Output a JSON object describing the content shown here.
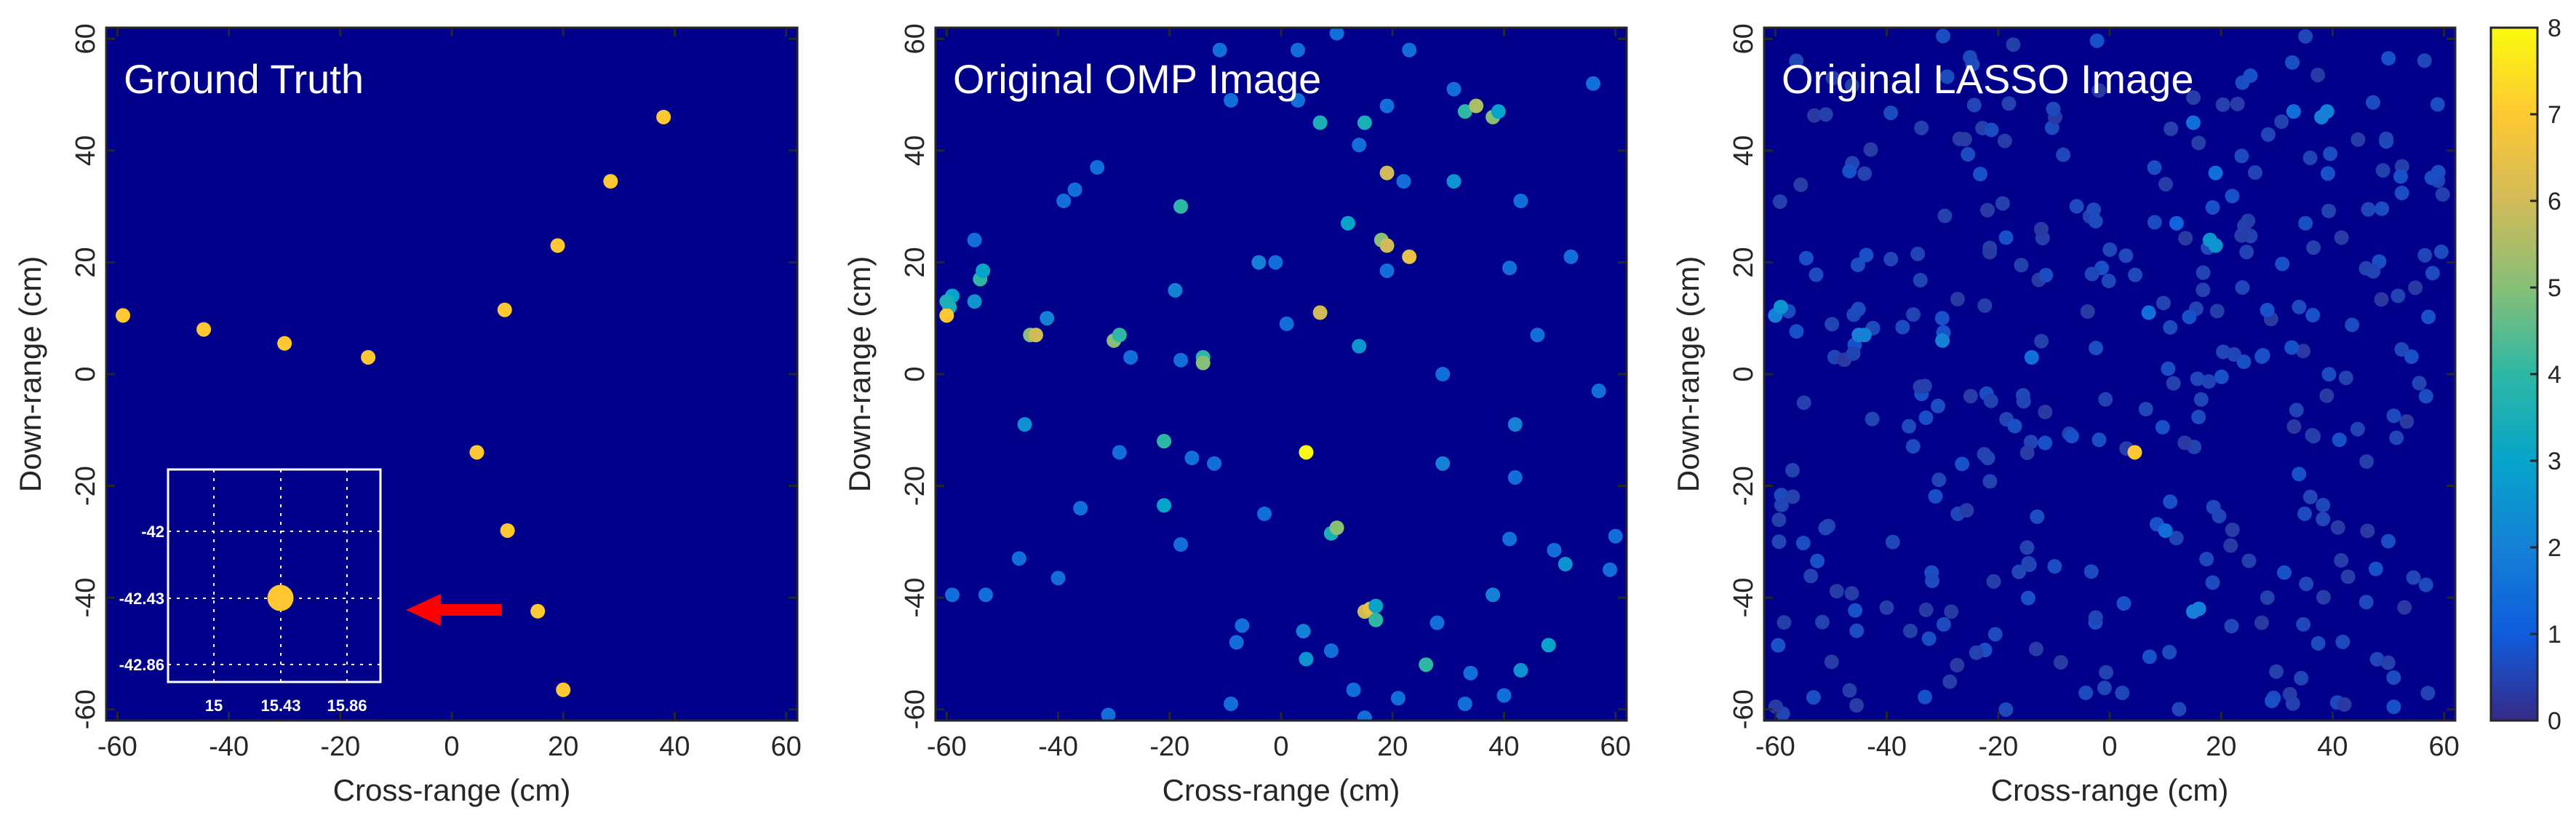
{
  "colors": {
    "background": "#00008B",
    "frame": "#262626",
    "arrow": "#FF0000",
    "inset_frame": "#FFFFFF"
  },
  "colorbar": {
    "min": 0,
    "max": 8,
    "ticks": [
      "0",
      "1",
      "2",
      "3",
      "4",
      "5",
      "6",
      "7",
      "8"
    ],
    "colormap": "parula"
  },
  "chart_data": [
    {
      "type": "scatter",
      "title": "Ground Truth",
      "xlabel": "Cross-range (cm)",
      "ylabel": "Down-range (cm)",
      "xlim": [
        -62,
        62
      ],
      "ylim": [
        -62,
        62
      ],
      "xticks": [
        "-60",
        "-40",
        "-20",
        "0",
        "20",
        "40",
        "60"
      ],
      "yticks": [
        "-60",
        "-40",
        "-20",
        "0",
        "20",
        "40",
        "60"
      ],
      "grid": false,
      "points": [
        {
          "x": -59,
          "y": 10.5,
          "v": 7
        },
        {
          "x": -44.5,
          "y": 8,
          "v": 7
        },
        {
          "x": -30,
          "y": 5.5,
          "v": 7
        },
        {
          "x": -15,
          "y": 3,
          "v": 7
        },
        {
          "x": 9.5,
          "y": 11.5,
          "v": 7
        },
        {
          "x": 19,
          "y": 23,
          "v": 7
        },
        {
          "x": 28.5,
          "y": 34.5,
          "v": 7
        },
        {
          "x": 38,
          "y": 46,
          "v": 7
        },
        {
          "x": 4.5,
          "y": -14,
          "v": 7
        },
        {
          "x": 10,
          "y": -28,
          "v": 7
        },
        {
          "x": 15.43,
          "y": -42.43,
          "v": 7
        },
        {
          "x": 20,
          "y": -56.5,
          "v": 7
        }
      ],
      "inset": {
        "xticks": [
          "15",
          "15.43",
          "15.86"
        ],
        "yticks": [
          "-42",
          "-42.43",
          "-42.86"
        ],
        "point": {
          "x": 15.43,
          "y": -42.43,
          "v": 7
        }
      }
    },
    {
      "type": "scatter",
      "title": "Original OMP Image",
      "xlabel": "Cross-range (cm)",
      "ylabel": "Down-range (cm)",
      "xlim": [
        -62,
        62
      ],
      "ylim": [
        -62,
        62
      ],
      "xticks": [
        "-60",
        "-40",
        "-20",
        "0",
        "20",
        "40",
        "60"
      ],
      "yticks": [
        "-60",
        "-40",
        "-20",
        "0",
        "20",
        "40",
        "60"
      ],
      "grid": false,
      "points": [
        {
          "x": -59.5,
          "y": 12,
          "v": 3.5
        },
        {
          "x": -60,
          "y": 10.5,
          "v": 7
        },
        {
          "x": -59,
          "y": 14,
          "v": 3
        },
        {
          "x": -55,
          "y": 24,
          "v": 1.5
        },
        {
          "x": -54,
          "y": 17,
          "v": 4
        },
        {
          "x": -53.5,
          "y": 18.5,
          "v": 3
        },
        {
          "x": -55,
          "y": 13,
          "v": 2.5
        },
        {
          "x": -59,
          "y": -39.5,
          "v": 1.5
        },
        {
          "x": -53,
          "y": -39.5,
          "v": 1.5
        },
        {
          "x": -47,
          "y": -33,
          "v": 1.5
        },
        {
          "x": -40,
          "y": -36.5,
          "v": 1.5
        },
        {
          "x": -46,
          "y": -9,
          "v": 2.5
        },
        {
          "x": -45,
          "y": 7,
          "v": 5
        },
        {
          "x": -44,
          "y": 7,
          "v": 6
        },
        {
          "x": -42,
          "y": 10,
          "v": 2
        },
        {
          "x": -39,
          "y": 31,
          "v": 1.5
        },
        {
          "x": -37,
          "y": 33,
          "v": 1.5
        },
        {
          "x": -33,
          "y": 37,
          "v": 1.5
        },
        {
          "x": -36,
          "y": -24,
          "v": 1.5
        },
        {
          "x": -30,
          "y": 6,
          "v": 5
        },
        {
          "x": -29,
          "y": 7,
          "v": 4
        },
        {
          "x": -27,
          "y": 3,
          "v": 1.5
        },
        {
          "x": -29,
          "y": -14,
          "v": 1.5
        },
        {
          "x": -21,
          "y": -12,
          "v": 4
        },
        {
          "x": -21,
          "y": -23.5,
          "v": 3
        },
        {
          "x": -19,
          "y": 15,
          "v": 2
        },
        {
          "x": -18,
          "y": 30,
          "v": 4
        },
        {
          "x": -18,
          "y": 2.5,
          "v": 1.5
        },
        {
          "x": -14,
          "y": 3,
          "v": 4
        },
        {
          "x": -14,
          "y": 2,
          "v": 5
        },
        {
          "x": -16,
          "y": -15,
          "v": 1.5
        },
        {
          "x": -18,
          "y": -30.5,
          "v": 1.5
        },
        {
          "x": -12,
          "y": -16,
          "v": 1.5
        },
        {
          "x": -11,
          "y": 58,
          "v": 1.5
        },
        {
          "x": -9,
          "y": 49,
          "v": 1.5
        },
        {
          "x": -7,
          "y": -45,
          "v": 1.5
        },
        {
          "x": -8,
          "y": -48,
          "v": 1.5
        },
        {
          "x": -9,
          "y": -59,
          "v": 1.5
        },
        {
          "x": -4,
          "y": 20,
          "v": 2
        },
        {
          "x": -1,
          "y": 20,
          "v": 1.5
        },
        {
          "x": -3,
          "y": -25,
          "v": 1.5
        },
        {
          "x": 1,
          "y": 9,
          "v": 1.5
        },
        {
          "x": 3,
          "y": 58,
          "v": 1.5
        },
        {
          "x": 4.5,
          "y": -14,
          "v": 8
        },
        {
          "x": 4,
          "y": -46,
          "v": 2
        },
        {
          "x": 4.5,
          "y": -51,
          "v": 2.5
        },
        {
          "x": 7,
          "y": 11,
          "v": 6
        },
        {
          "x": 7,
          "y": 45,
          "v": 3.5
        },
        {
          "x": 9,
          "y": -28.5,
          "v": 3.5
        },
        {
          "x": 10,
          "y": -27.5,
          "v": 5
        },
        {
          "x": 10,
          "y": 61,
          "v": 1.5
        },
        {
          "x": 9,
          "y": -49.5,
          "v": 1.5
        },
        {
          "x": 12,
          "y": 27,
          "v": 3
        },
        {
          "x": 14,
          "y": 5,
          "v": 2.5
        },
        {
          "x": 14,
          "y": 41,
          "v": 1.5
        },
        {
          "x": 15,
          "y": 45,
          "v": 3.5
        },
        {
          "x": 15,
          "y": -42.5,
          "v": 6
        },
        {
          "x": 16,
          "y": -42,
          "v": 6.5
        },
        {
          "x": 17,
          "y": -41.5,
          "v": 3
        },
        {
          "x": 17,
          "y": -44,
          "v": 4
        },
        {
          "x": 13,
          "y": -56.5,
          "v": 1.5
        },
        {
          "x": 15,
          "y": -61.5,
          "v": 1.5
        },
        {
          "x": 18,
          "y": 24,
          "v": 5
        },
        {
          "x": 19,
          "y": 23,
          "v": 6
        },
        {
          "x": 19,
          "y": 36,
          "v": 6
        },
        {
          "x": 19,
          "y": 48,
          "v": 1.5
        },
        {
          "x": 19,
          "y": 18.5,
          "v": 1.5
        },
        {
          "x": 21,
          "y": -58,
          "v": 1.5
        },
        {
          "x": 22,
          "y": 34.5,
          "v": 1.5
        },
        {
          "x": 23,
          "y": 21,
          "v": 6.5
        },
        {
          "x": 23,
          "y": 58,
          "v": 1.5
        },
        {
          "x": 26,
          "y": -52,
          "v": 4
        },
        {
          "x": 28,
          "y": -44.5,
          "v": 1.5
        },
        {
          "x": 29,
          "y": 0,
          "v": 1.5
        },
        {
          "x": 29,
          "y": -16,
          "v": 2
        },
        {
          "x": 31,
          "y": 34.5,
          "v": 2.5
        },
        {
          "x": 31,
          "y": 51,
          "v": 1.5
        },
        {
          "x": 33,
          "y": 47,
          "v": 4
        },
        {
          "x": 35,
          "y": 48,
          "v": 5.5
        },
        {
          "x": 38,
          "y": 46,
          "v": 5
        },
        {
          "x": 39,
          "y": 47,
          "v": 3
        },
        {
          "x": 33,
          "y": -59,
          "v": 1.5
        },
        {
          "x": 34,
          "y": -53.5,
          "v": 1.5
        },
        {
          "x": 38,
          "y": -39.5,
          "v": 2
        },
        {
          "x": 40,
          "y": -57.5,
          "v": 1.5
        },
        {
          "x": 41,
          "y": 19,
          "v": 1.5
        },
        {
          "x": 41,
          "y": -29.5,
          "v": 1.5
        },
        {
          "x": 42,
          "y": -9,
          "v": 2
        },
        {
          "x": 42,
          "y": -18.5,
          "v": 1.5
        },
        {
          "x": 43,
          "y": 31,
          "v": 1.5
        },
        {
          "x": 43,
          "y": -53,
          "v": 2.5
        },
        {
          "x": 46,
          "y": 7,
          "v": 1.5
        },
        {
          "x": 48,
          "y": -48.5,
          "v": 3
        },
        {
          "x": 49,
          "y": -31.5,
          "v": 1.5
        },
        {
          "x": 51,
          "y": -34,
          "v": 2.5
        },
        {
          "x": 52,
          "y": 21,
          "v": 1.5
        },
        {
          "x": 56,
          "y": 52,
          "v": 1.5
        },
        {
          "x": 57,
          "y": -3,
          "v": 1.5
        },
        {
          "x": 59,
          "y": -35,
          "v": 1.5
        },
        {
          "x": 60,
          "y": -29,
          "v": 1.5
        },
        {
          "x": -60,
          "y": 13,
          "v": 3.5
        },
        {
          "x": 3,
          "y": 49,
          "v": 1.5
        },
        {
          "x": -31,
          "y": -61,
          "v": 1.5
        }
      ]
    },
    {
      "type": "scatter",
      "title": "Original LASSO Image",
      "xlabel": "Cross-range (cm)",
      "ylabel": "Down-range (cm)",
      "xlim": [
        -62,
        62
      ],
      "ylim": [
        -62,
        62
      ],
      "xticks": [
        "-60",
        "-40",
        "-20",
        "0",
        "20",
        "40",
        "60"
      ],
      "yticks": [
        "-60",
        "-40",
        "-20",
        "0",
        "20",
        "40",
        "60"
      ],
      "grid": false,
      "highlight_points": [
        {
          "x": 4.5,
          "y": -14,
          "v": 7
        },
        {
          "x": 18,
          "y": 24,
          "v": 2.5
        },
        {
          "x": 19,
          "y": 23,
          "v": 2.5
        },
        {
          "x": 38,
          "y": 46,
          "v": 2
        },
        {
          "x": 39,
          "y": 47,
          "v": 2
        },
        {
          "x": 15,
          "y": -42.5,
          "v": 2
        },
        {
          "x": 16,
          "y": -42,
          "v": 2
        },
        {
          "x": -60,
          "y": 10.5,
          "v": 2
        },
        {
          "x": -59,
          "y": 12,
          "v": 2.5
        },
        {
          "x": -45,
          "y": 7,
          "v": 2
        },
        {
          "x": -44,
          "y": 7,
          "v": 2
        },
        {
          "x": -30,
          "y": 6,
          "v": 2
        },
        {
          "x": -14,
          "y": 3,
          "v": 1.5
        },
        {
          "x": 10,
          "y": -28,
          "v": 1.5
        },
        {
          "x": 7,
          "y": 11,
          "v": 1.5
        },
        {
          "x": 19,
          "y": 36,
          "v": 1.5
        },
        {
          "x": 33,
          "y": 47,
          "v": 1.5
        },
        {
          "x": 15,
          "y": 45,
          "v": 1.5
        },
        {
          "x": 12,
          "y": 27,
          "v": 1.2
        }
      ],
      "background_cloud": {
        "count": 330,
        "value_range": [
          0.3,
          0.8
        ],
        "xlim": [
          -60,
          60
        ],
        "ylim": [
          -61,
          61
        ]
      }
    }
  ]
}
